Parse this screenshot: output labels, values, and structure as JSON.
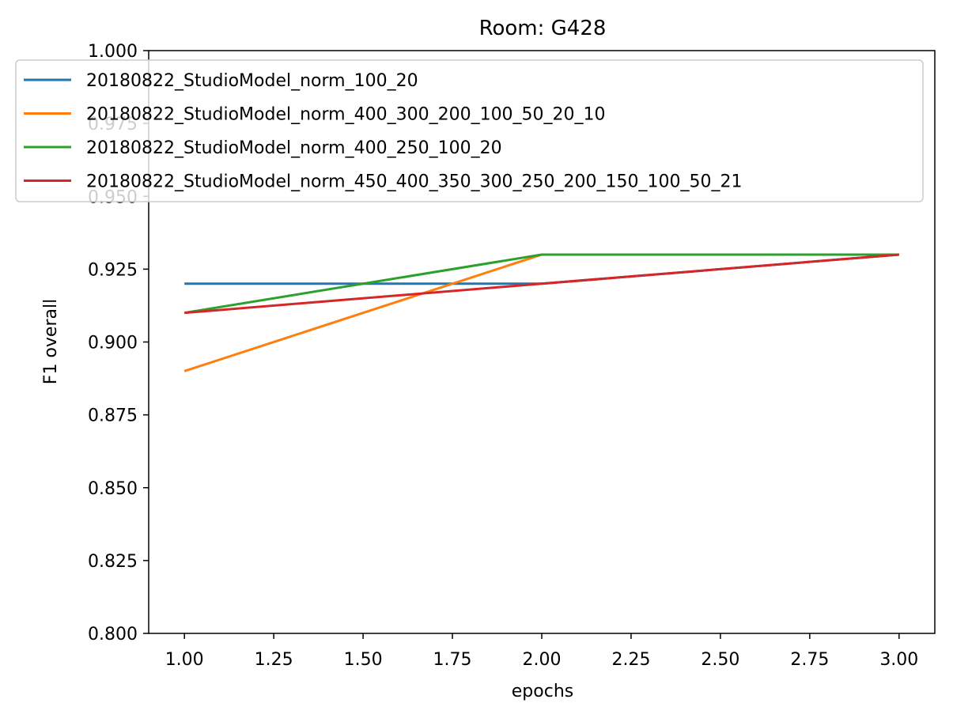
{
  "chart_data": {
    "type": "line",
    "title": "Room: G428",
    "xlabel": "epochs",
    "ylabel": "F1 overall",
    "xlim": [
      0.9,
      3.1
    ],
    "ylim": [
      0.8,
      1.0
    ],
    "xticks": [
      "1.00",
      "1.25",
      "1.50",
      "1.75",
      "2.00",
      "2.25",
      "2.50",
      "2.75",
      "3.00"
    ],
    "yticks": [
      "0.800",
      "0.825",
      "0.850",
      "0.875",
      "0.900",
      "0.925",
      "0.950",
      "0.975",
      "1.000"
    ],
    "x": [
      1,
      2,
      3
    ],
    "grid": false,
    "legend_position": "top",
    "series": [
      {
        "name": "20180822_StudioModel_norm_100_20",
        "values": [
          0.92,
          0.92,
          0.93
        ],
        "color": "#1f77b4"
      },
      {
        "name": "20180822_StudioModel_norm_400_300_200_100_50_20_10",
        "values": [
          0.89,
          0.93,
          0.93
        ],
        "color": "#ff7f0e"
      },
      {
        "name": "20180822_StudioModel_norm_400_250_100_20",
        "values": [
          0.91,
          0.93,
          0.93
        ],
        "color": "#2ca02c"
      },
      {
        "name": "20180822_StudioModel_norm_450_400_350_300_250_200_150_100_50_21",
        "values": [
          0.91,
          0.92,
          0.93
        ],
        "color": "#d62728"
      }
    ]
  }
}
